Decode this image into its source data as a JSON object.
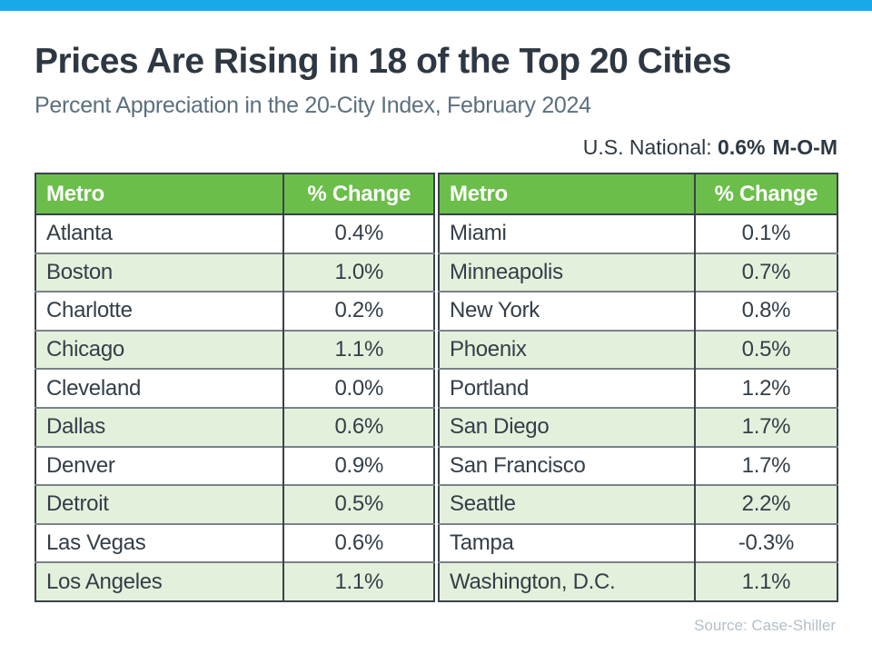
{
  "header": {
    "title": "Prices Are Rising in 18 of the Top 20 Cities",
    "subtitle": "Percent Appreciation in the 20-City Index, February 2024",
    "national_label": "U.S. National:",
    "national_value": "0.6%",
    "national_suffix": "M-O-M"
  },
  "footer": {
    "source": "Source: Case-Shiller"
  },
  "colors": {
    "accent_bar": "#18A9EA",
    "header_green": "#6CBE4B",
    "row_alt_green": "#E3F1DC",
    "title_text": "#2E3842",
    "subtitle_text": "#5B707D",
    "source_text": "#B3BFC7"
  },
  "chart_data": {
    "type": "table",
    "title": "Prices Are Rising in 18 of the Top 20 Cities",
    "subtitle": "Percent Appreciation in the 20-City Index, February 2024",
    "national_mom_percent": 0.6,
    "columns": [
      "Metro",
      "% Change",
      "Metro",
      "% Change"
    ],
    "rows": [
      {
        "metro_left": "Atlanta",
        "change_left": "0.4%",
        "metro_right": "Miami",
        "change_right": "0.1%"
      },
      {
        "metro_left": "Boston",
        "change_left": "1.0%",
        "metro_right": "Minneapolis",
        "change_right": "0.7%"
      },
      {
        "metro_left": "Charlotte",
        "change_left": "0.2%",
        "metro_right": "New York",
        "change_right": "0.8%"
      },
      {
        "metro_left": "Chicago",
        "change_left": "1.1%",
        "metro_right": "Phoenix",
        "change_right": "0.5%"
      },
      {
        "metro_left": "Cleveland",
        "change_left": "0.0%",
        "metro_right": "Portland",
        "change_right": "1.2%"
      },
      {
        "metro_left": "Dallas",
        "change_left": "0.6%",
        "metro_right": "San Diego",
        "change_right": "1.7%"
      },
      {
        "metro_left": "Denver",
        "change_left": "0.9%",
        "metro_right": "San Francisco",
        "change_right": "1.7%"
      },
      {
        "metro_left": "Detroit",
        "change_left": "0.5%",
        "metro_right": "Seattle",
        "change_right": "2.2%"
      },
      {
        "metro_left": "Las Vegas",
        "change_left": "0.6%",
        "metro_right": "Tampa",
        "change_right": "-0.3%"
      },
      {
        "metro_left": "Los Angeles",
        "change_left": "1.1%",
        "metro_right": "Washington, D.C.",
        "change_right": "1.1%"
      }
    ],
    "source": "Source: Case-Shiller"
  }
}
